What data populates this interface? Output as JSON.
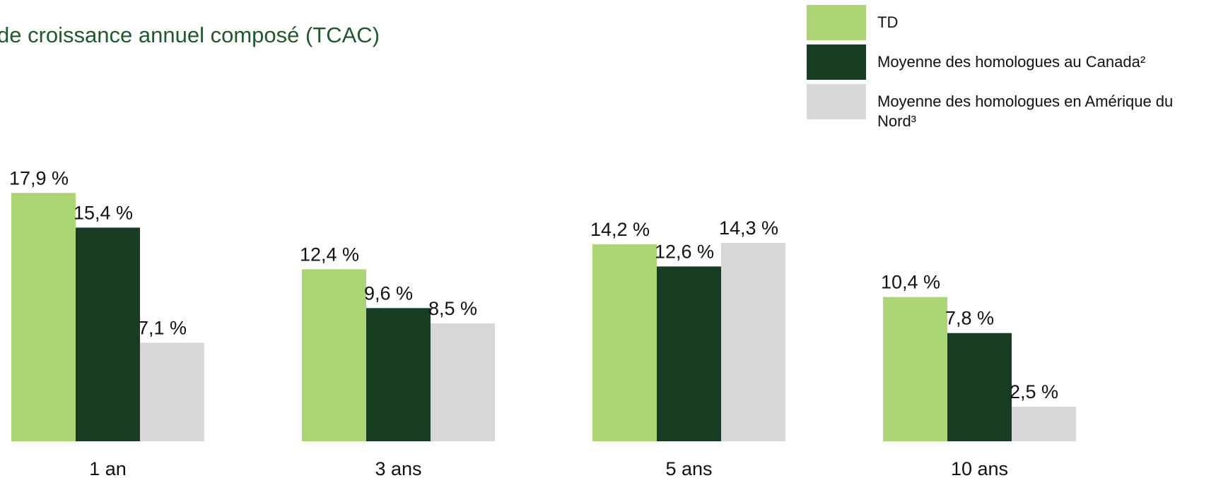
{
  "chart_data": {
    "type": "bar",
    "subtitle": "de croissance annuel composé (TCAC)",
    "categories": [
      "1 an",
      "3 ans",
      "5 ans",
      "10 ans"
    ],
    "series": [
      {
        "name": "TD",
        "color": "#acd573",
        "values": [
          17.9,
          12.4,
          14.2,
          10.4
        ],
        "value_labels": [
          "17,9 %",
          "12,4 %",
          "14,2 %",
          "10,4 %"
        ]
      },
      {
        "name": "Moyenne des homologues au Canada²",
        "color": "#173e23",
        "values": [
          15.4,
          9.6,
          12.6,
          7.8
        ],
        "value_labels": [
          "15,4 %",
          "9,6 %",
          "12,6 %",
          "7,8 %"
        ]
      },
      {
        "name": "Moyenne des homologues en Amérique du Nord³",
        "color": "#d8d8d8",
        "values": [
          7.1,
          8.5,
          14.3,
          2.5
        ],
        "value_labels": [
          "7,1 %",
          "8,5 %",
          "14,3 %",
          "2,5 %"
        ]
      }
    ],
    "ylim": [
      0,
      20
    ]
  }
}
